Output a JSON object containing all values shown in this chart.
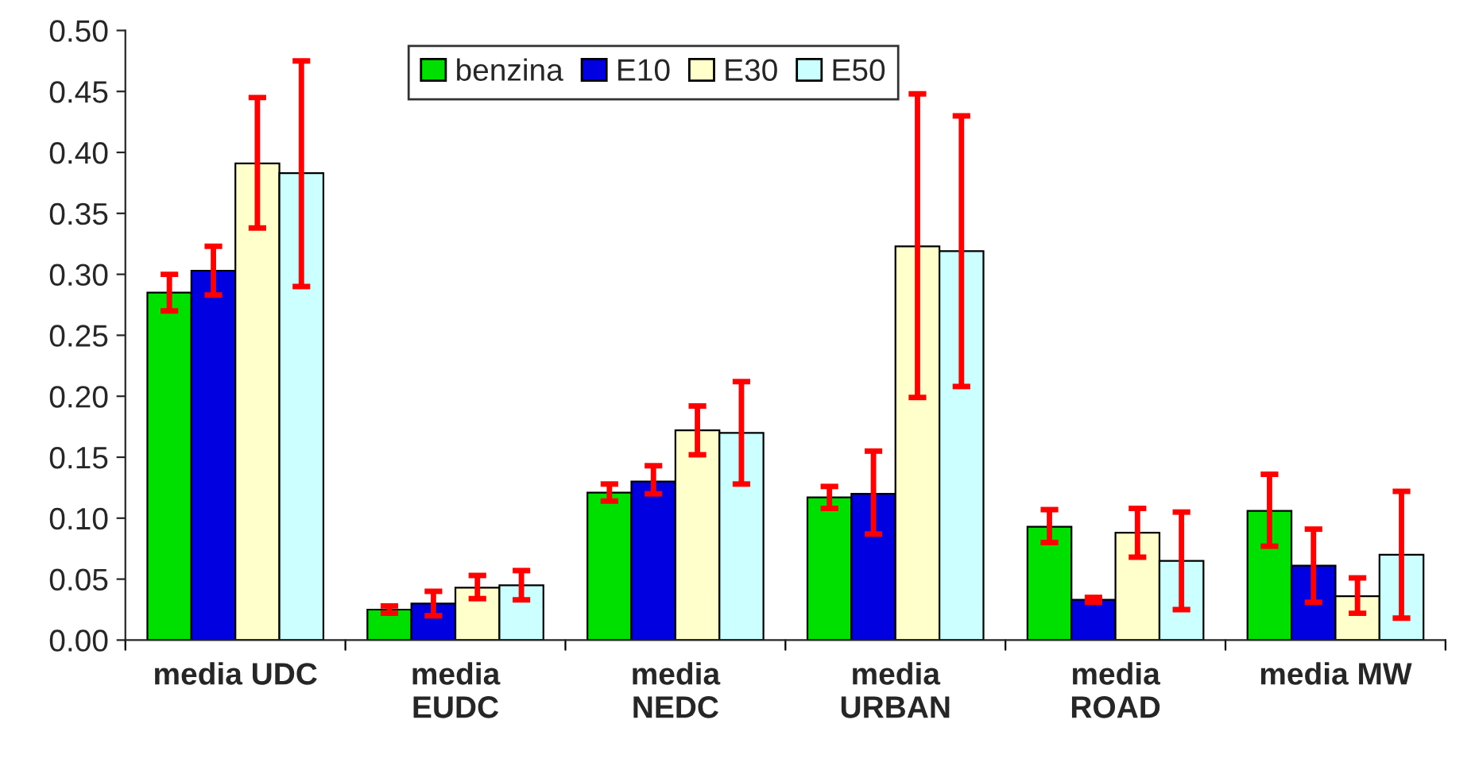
{
  "chart_data": {
    "type": "bar",
    "categories": [
      "media UDC",
      "media\nEUDC",
      "media\nNEDC",
      "media\nURBAN",
      "media\nROAD",
      "media MW"
    ],
    "ylim": [
      0,
      0.5
    ],
    "yticks": [
      {
        "value": 0,
        "label": "0.00"
      },
      {
        "value": 0.05,
        "label": "0.05"
      },
      {
        "value": 0.1,
        "label": "0.10"
      },
      {
        "value": 0.15,
        "label": "0.15"
      },
      {
        "value": 0.2,
        "label": "0.20"
      },
      {
        "value": 0.25,
        "label": "0.25"
      },
      {
        "value": 0.3,
        "label": "0.30"
      },
      {
        "value": 0.35,
        "label": "0.35"
      },
      {
        "value": 0.4,
        "label": "0.40"
      },
      {
        "value": 0.45,
        "label": "0.45"
      },
      {
        "value": 0.5,
        "label": "0.50"
      }
    ],
    "grid": false,
    "legend": "top",
    "series": [
      {
        "name": "benzina",
        "color": "#00e000",
        "values": [
          0.285,
          0.025,
          0.121,
          0.117,
          0.093,
          0.106
        ],
        "errors": [
          [
            0.27,
            0.3
          ],
          [
            0.022,
            0.028
          ],
          [
            0.114,
            0.128
          ],
          [
            0.108,
            0.126
          ],
          [
            0.08,
            0.107
          ],
          [
            0.077,
            0.136
          ]
        ]
      },
      {
        "name": "E10",
        "color": "#0000e0",
        "values": [
          0.303,
          0.03,
          0.13,
          0.12,
          0.033,
          0.061
        ],
        "errors": [
          [
            0.283,
            0.323
          ],
          [
            0.02,
            0.04
          ],
          [
            0.12,
            0.143
          ],
          [
            0.087,
            0.155
          ],
          [
            0.031,
            0.035
          ],
          [
            0.031,
            0.091
          ]
        ]
      },
      {
        "name": "E30",
        "color": "#ffffcc",
        "values": [
          0.391,
          0.043,
          0.172,
          0.323,
          0.088,
          0.036
        ],
        "errors": [
          [
            0.338,
            0.445
          ],
          [
            0.034,
            0.053
          ],
          [
            0.152,
            0.192
          ],
          [
            0.199,
            0.448
          ],
          [
            0.068,
            0.108
          ],
          [
            0.022,
            0.051
          ]
        ]
      },
      {
        "name": "E50",
        "color": "#ccffff",
        "values": [
          0.383,
          0.045,
          0.17,
          0.319,
          0.065,
          0.07
        ],
        "errors": [
          [
            0.29,
            0.475
          ],
          [
            0.033,
            0.057
          ],
          [
            0.128,
            0.212
          ],
          [
            0.208,
            0.43
          ],
          [
            0.025,
            0.105
          ],
          [
            0.018,
            0.122
          ]
        ]
      }
    ]
  }
}
